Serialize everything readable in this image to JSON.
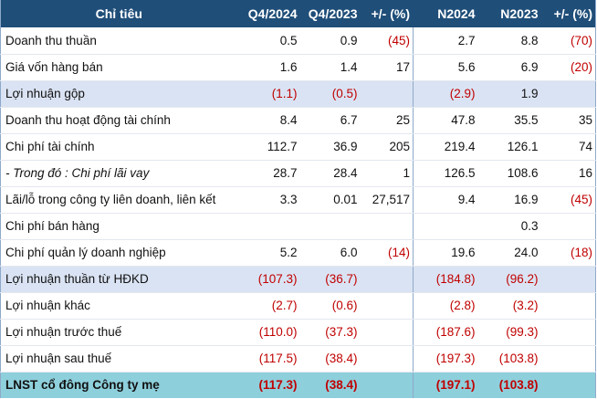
{
  "table": {
    "headers": [
      "Chỉ tiêu",
      "Q4/2024",
      "Q4/2023",
      "+/- (%)",
      "N2024",
      "N2023",
      "+/- (%)"
    ],
    "rows": [
      {
        "label": "Doanh thu thuần",
        "q4_2024": "0.5",
        "q4_2023": "0.9",
        "q4_change": "(45)",
        "n2024": "2.7",
        "n2023": "8.8",
        "n_change": "(70)",
        "style": "normal"
      },
      {
        "label": "Giá vốn hàng bán",
        "q4_2024": "1.6",
        "q4_2023": "1.4",
        "q4_change": "17",
        "n2024": "5.6",
        "n2023": "6.9",
        "n_change": "(20)",
        "style": "normal"
      },
      {
        "label": "Lợi nhuận gộp",
        "q4_2024": "(1.1)",
        "q4_2023": "(0.5)",
        "q4_change": "",
        "n2024": "(2.9)",
        "n2023": "1.9",
        "n_change": "",
        "style": "shade"
      },
      {
        "label": "Doanh thu hoạt động tài chính",
        "q4_2024": "8.4",
        "q4_2023": "6.7",
        "q4_change": "25",
        "n2024": "47.8",
        "n2023": "35.5",
        "n_change": "35",
        "style": "normal"
      },
      {
        "label": "Chi phí tài chính",
        "q4_2024": "112.7",
        "q4_2023": "36.9",
        "q4_change": "205",
        "n2024": "219.4",
        "n2023": "126.1",
        "n_change": "74",
        "style": "normal"
      },
      {
        "label": "- Trong đó : Chi phí lãi vay",
        "q4_2024": "28.7",
        "q4_2023": "28.4",
        "q4_change": "1",
        "n2024": "126.5",
        "n2023": "108.6",
        "n_change": "16",
        "style": "italic"
      },
      {
        "label": "Lãi/lỗ trong công ty liên doanh, liên kết",
        "q4_2024": "3.3",
        "q4_2023": "0.01",
        "q4_change": "27,517",
        "n2024": "9.4",
        "n2023": "16.9",
        "n_change": "(45)",
        "style": "normal"
      },
      {
        "label": "Chi phí bán hàng",
        "q4_2024": "",
        "q4_2023": "",
        "q4_change": "",
        "n2024": "",
        "n2023": "0.3",
        "n_change": "",
        "style": "normal"
      },
      {
        "label": "Chi phí quản lý doanh nghiệp",
        "q4_2024": "5.2",
        "q4_2023": "6.0",
        "q4_change": "(14)",
        "n2024": "19.6",
        "n2023": "24.0",
        "n_change": "(18)",
        "style": "normal"
      },
      {
        "label": "Lợi nhuận thuần từ HĐKD",
        "q4_2024": "(107.3)",
        "q4_2023": "(36.7)",
        "q4_change": "",
        "n2024": "(184.8)",
        "n2023": "(96.2)",
        "n_change": "",
        "style": "shade"
      },
      {
        "label": "Lợi nhuận khác",
        "q4_2024": "(2.7)",
        "q4_2023": "(0.6)",
        "q4_change": "",
        "n2024": "(2.8)",
        "n2023": "(3.2)",
        "n_change": "",
        "style": "normal"
      },
      {
        "label": "Lợi nhuận trước thuế",
        "q4_2024": "(110.0)",
        "q4_2023": "(37.3)",
        "q4_change": "",
        "n2024": "(187.6)",
        "n2023": "(99.3)",
        "n_change": "",
        "style": "normal"
      },
      {
        "label": "Lợi nhuận sau thuế",
        "q4_2024": "(117.5)",
        "q4_2023": "(38.4)",
        "q4_change": "",
        "n2024": "(197.3)",
        "n2023": "(103.8)",
        "n_change": "",
        "style": "normal"
      },
      {
        "label": "LNST cổ đông Công ty mẹ",
        "q4_2024": "(117.3)",
        "q4_2023": "(38.4)",
        "q4_change": "",
        "n2024": "(197.1)",
        "n2023": "(103.8)",
        "n_change": "",
        "style": "final"
      }
    ]
  },
  "colors": {
    "header_bg": "#1f4e79",
    "shade_bg": "#dae3f3",
    "final_bg": "#8ecfdc",
    "negative": "#c00000"
  }
}
